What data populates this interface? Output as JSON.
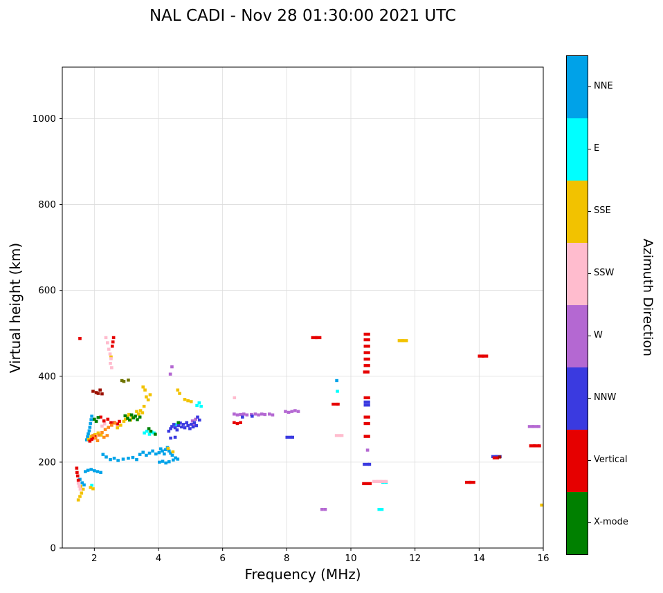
{
  "title": "NAL CADI - Nov 28 01:30:00 2021 UTC",
  "chart_data": {
    "type": "scatter",
    "title": "NAL CADI - Nov 28 01:30:00 2021 UTC",
    "xlabel": "Frequency (MHz)",
    "ylabel": "Virtual height (km)",
    "xlim": [
      1,
      16
    ],
    "ylim": [
      0,
      1120
    ],
    "xticks": [
      2,
      4,
      6,
      8,
      10,
      12,
      14,
      16
    ],
    "yticks": [
      0,
      200,
      400,
      600,
      800,
      1000
    ],
    "grid": true,
    "legend_position": "right-colorbar",
    "colorbar": {
      "label": "Azimuth Direction",
      "categories": [
        "NNE",
        "E",
        "SSE",
        "SSW",
        "W",
        "NNW",
        "Vertical",
        "X-mode"
      ],
      "colors": [
        "#00a2e8",
        "#00ffff",
        "#f2c200",
        "#ffbcce",
        "#b468d2",
        "#3a3ae0",
        "#e60000",
        "#008000"
      ]
    },
    "extra_colors": {
      "Orange": "#ff8c1a",
      "DarkRed": "#9b1000",
      "DarkOlive": "#6f7400"
    },
    "marker": {
      "width_mhz": 0.1,
      "height_km": 7
    },
    "points_format": [
      "freq_mhz",
      "height_km",
      "direction",
      "width_scale_optional"
    ],
    "points": [
      [
        1.55,
        160,
        "NNE"
      ],
      [
        1.62,
        152,
        "NNE"
      ],
      [
        1.68,
        147,
        "NNE"
      ],
      [
        1.72,
        178,
        "NNE"
      ],
      [
        1.8,
        181,
        "NNE"
      ],
      [
        1.9,
        183,
        "NNE"
      ],
      [
        2.0,
        180,
        "NNE"
      ],
      [
        2.1,
        178,
        "NNE"
      ],
      [
        2.2,
        176,
        "NNE"
      ],
      [
        1.76,
        252,
        "NNE"
      ],
      [
        1.79,
        259,
        "NNE"
      ],
      [
        1.81,
        266,
        "NNE"
      ],
      [
        1.84,
        273,
        "NNE"
      ],
      [
        1.86,
        281,
        "NNE"
      ],
      [
        1.88,
        290,
        "NNE"
      ],
      [
        1.9,
        299,
        "NNE"
      ],
      [
        1.92,
        307,
        "NNE"
      ],
      [
        2.27,
        218,
        "NNE"
      ],
      [
        2.37,
        212,
        "NNE"
      ],
      [
        2.5,
        206,
        "NNE"
      ],
      [
        2.62,
        209,
        "NNE"
      ],
      [
        2.74,
        204,
        "NNE"
      ],
      [
        2.9,
        207,
        "NNE"
      ],
      [
        3.06,
        209,
        "NNE"
      ],
      [
        3.2,
        211,
        "NNE"
      ],
      [
        3.32,
        206,
        "NNE"
      ],
      [
        3.42,
        218,
        "NNE"
      ],
      [
        3.52,
        223,
        "NNE"
      ],
      [
        3.62,
        216,
        "NNE"
      ],
      [
        3.72,
        221,
        "NNE"
      ],
      [
        3.82,
        226,
        "NNE"
      ],
      [
        3.92,
        219,
        "NNE"
      ],
      [
        4.02,
        222,
        "NNE"
      ],
      [
        4.07,
        231,
        "NNE"
      ],
      [
        4.12,
        226,
        "NNE"
      ],
      [
        4.18,
        219,
        "NNE"
      ],
      [
        4.22,
        229,
        "NNE"
      ],
      [
        4.28,
        234,
        "NNE"
      ],
      [
        4.33,
        226,
        "NNE"
      ],
      [
        4.38,
        221,
        "NNE"
      ],
      [
        4.43,
        216,
        "NNE"
      ],
      [
        4.03,
        200,
        "NNE"
      ],
      [
        4.13,
        202,
        "NNE"
      ],
      [
        4.23,
        198,
        "NNE"
      ],
      [
        4.33,
        201,
        "NNE"
      ],
      [
        4.46,
        205,
        "NNE"
      ],
      [
        4.53,
        210,
        "NNE"
      ],
      [
        4.6,
        207,
        "NNE"
      ],
      [
        9.56,
        390,
        "NNE"
      ],
      [
        1.92,
        146,
        "E"
      ],
      [
        3.56,
        268,
        "E"
      ],
      [
        3.64,
        272,
        "E"
      ],
      [
        3.72,
        265,
        "E"
      ],
      [
        3.79,
        270,
        "E"
      ],
      [
        3.86,
        268,
        "E"
      ],
      [
        4.52,
        287,
        "E"
      ],
      [
        5.2,
        332,
        "E"
      ],
      [
        5.27,
        338,
        "E"
      ],
      [
        5.33,
        330,
        "E"
      ],
      [
        9.58,
        365,
        "E"
      ],
      [
        10.88,
        90,
        "E"
      ],
      [
        10.97,
        90,
        "E"
      ],
      [
        11.0,
        153,
        "E"
      ],
      [
        11.1,
        153,
        "E"
      ],
      [
        1.5,
        112,
        "SSE"
      ],
      [
        1.55,
        120,
        "SSE"
      ],
      [
        1.6,
        128,
        "SSE"
      ],
      [
        1.65,
        137,
        "SSE"
      ],
      [
        1.57,
        144,
        "SSE"
      ],
      [
        1.88,
        141,
        "SSE"
      ],
      [
        1.96,
        138,
        "SSE"
      ],
      [
        1.82,
        253,
        "SSE"
      ],
      [
        1.9,
        260,
        "SSE"
      ],
      [
        2.02,
        264,
        "SSE"
      ],
      [
        2.12,
        268,
        "SSE"
      ],
      [
        2.21,
        263,
        "SSE"
      ],
      [
        2.52,
        445,
        "SSE"
      ],
      [
        2.72,
        280,
        "SSE"
      ],
      [
        2.82,
        286,
        "SSE"
      ],
      [
        2.92,
        295,
        "SSE"
      ],
      [
        2.97,
        300,
        "SSE"
      ],
      [
        3.03,
        306,
        "SSE"
      ],
      [
        3.08,
        311,
        "SSE"
      ],
      [
        3.13,
        298,
        "SSE"
      ],
      [
        3.18,
        304,
        "SSE"
      ],
      [
        3.32,
        318,
        "SSE"
      ],
      [
        3.38,
        312,
        "SSE"
      ],
      [
        3.44,
        320,
        "SSE"
      ],
      [
        3.5,
        315,
        "SSE"
      ],
      [
        3.55,
        330,
        "SSE"
      ],
      [
        3.52,
        375,
        "SSE"
      ],
      [
        3.58,
        368,
        "SSE"
      ],
      [
        3.62,
        352,
        "SSE"
      ],
      [
        3.68,
        345,
        "SSE"
      ],
      [
        3.74,
        357,
        "SSE"
      ],
      [
        4.3,
        232,
        "SSE"
      ],
      [
        4.45,
        224,
        "SSE"
      ],
      [
        4.6,
        368,
        "SSE"
      ],
      [
        4.66,
        360,
        "SSE"
      ],
      [
        4.82,
        346,
        "SSE"
      ],
      [
        4.92,
        343,
        "SSE"
      ],
      [
        5.02,
        341,
        "SSE"
      ],
      [
        11.56,
        483,
        "SSE",
        2
      ],
      [
        11.68,
        483,
        "SSE",
        2
      ],
      [
        15.95,
        100,
        "SSE"
      ],
      [
        1.5,
        151,
        "SSW"
      ],
      [
        1.53,
        144,
        "SSW"
      ],
      [
        1.56,
        137,
        "SSW"
      ],
      [
        2.24,
        284,
        "SSW"
      ],
      [
        2.32,
        289,
        "SSW"
      ],
      [
        2.36,
        490,
        "SSW"
      ],
      [
        2.41,
        478,
        "SSW"
      ],
      [
        2.45,
        463,
        "SSW"
      ],
      [
        2.49,
        452,
        "SSW"
      ],
      [
        2.52,
        441,
        "SSW"
      ],
      [
        2.5,
        430,
        "SSW"
      ],
      [
        2.54,
        420,
        "SSW"
      ],
      [
        6.37,
        350,
        "SSW"
      ],
      [
        9.6,
        262,
        "SSW",
        2
      ],
      [
        9.72,
        262,
        "SSW"
      ],
      [
        10.77,
        155,
        "SSW",
        2
      ],
      [
        10.88,
        155,
        "SSW",
        2
      ],
      [
        10.99,
        155,
        "SSW",
        2
      ],
      [
        11.1,
        155,
        "SSW"
      ],
      [
        4.37,
        405,
        "W"
      ],
      [
        4.42,
        422,
        "W"
      ],
      [
        6.36,
        312,
        "W"
      ],
      [
        6.46,
        310,
        "W"
      ],
      [
        6.56,
        311,
        "W"
      ],
      [
        6.66,
        312,
        "W"
      ],
      [
        6.76,
        310,
        "W"
      ],
      [
        6.9,
        311,
        "W"
      ],
      [
        7.02,
        312,
        "W"
      ],
      [
        7.12,
        310,
        "W"
      ],
      [
        7.22,
        312,
        "W"
      ],
      [
        7.32,
        311,
        "W"
      ],
      [
        7.46,
        312,
        "W"
      ],
      [
        7.56,
        310,
        "W"
      ],
      [
        7.96,
        318,
        "W"
      ],
      [
        8.06,
        316,
        "W"
      ],
      [
        8.16,
        318,
        "W"
      ],
      [
        8.26,
        320,
        "W"
      ],
      [
        8.36,
        318,
        "W"
      ],
      [
        9.1,
        90,
        "W"
      ],
      [
        9.2,
        90,
        "W"
      ],
      [
        10.52,
        228,
        "W"
      ],
      [
        5.06,
        296,
        "W"
      ],
      [
        5.16,
        300,
        "W"
      ],
      [
        5.1,
        288,
        "W"
      ],
      [
        15.62,
        283,
        "W",
        2
      ],
      [
        15.74,
        283,
        "W",
        2
      ],
      [
        15.86,
        283,
        "W"
      ],
      [
        4.32,
        272,
        "NNW"
      ],
      [
        4.38,
        278,
        "NNW"
      ],
      [
        4.42,
        283,
        "NNW"
      ],
      [
        4.48,
        288,
        "NNW"
      ],
      [
        4.52,
        280,
        "NNW"
      ],
      [
        4.58,
        275,
        "NNW"
      ],
      [
        4.62,
        285,
        "NNW"
      ],
      [
        4.68,
        291,
        "NNW"
      ],
      [
        4.72,
        282,
        "NNW"
      ],
      [
        4.78,
        288,
        "NNW"
      ],
      [
        4.82,
        280,
        "NNW"
      ],
      [
        4.88,
        292,
        "NNW"
      ],
      [
        4.92,
        285,
        "NNW"
      ],
      [
        4.98,
        278,
        "NNW"
      ],
      [
        5.02,
        288,
        "NNW"
      ],
      [
        5.08,
        282,
        "NNW"
      ],
      [
        5.12,
        292,
        "NNW"
      ],
      [
        5.18,
        285,
        "NNW"
      ],
      [
        5.22,
        305,
        "NNW"
      ],
      [
        5.28,
        298,
        "NNW"
      ],
      [
        4.38,
        256,
        "NNW"
      ],
      [
        4.52,
        258,
        "NNW"
      ],
      [
        6.62,
        305,
        "NNW"
      ],
      [
        6.92,
        307,
        "NNW"
      ],
      [
        8.06,
        258,
        "NNW",
        2
      ],
      [
        8.18,
        258,
        "NNW"
      ],
      [
        10.47,
        195,
        "NNW",
        2
      ],
      [
        10.58,
        195,
        "NNW"
      ],
      [
        10.5,
        340,
        "NNW",
        2
      ],
      [
        10.5,
        333,
        "NNW",
        2
      ],
      [
        14.48,
        213,
        "NNW",
        2
      ],
      [
        14.6,
        213,
        "NNW",
        2
      ],
      [
        1.45,
        186,
        "Vertical"
      ],
      [
        1.46,
        176,
        "Vertical"
      ],
      [
        1.48,
        168,
        "Vertical"
      ],
      [
        1.5,
        158,
        "Vertical"
      ],
      [
        1.55,
        488,
        "Vertical"
      ],
      [
        1.86,
        249,
        "Vertical"
      ],
      [
        1.92,
        253,
        "Vertical"
      ],
      [
        1.97,
        256,
        "Vertical"
      ],
      [
        2.02,
        259,
        "Vertical"
      ],
      [
        2.2,
        305,
        "Vertical"
      ],
      [
        2.3,
        296,
        "Vertical"
      ],
      [
        2.42,
        300,
        "Vertical"
      ],
      [
        2.52,
        292,
        "Vertical"
      ],
      [
        2.62,
        292,
        "Vertical"
      ],
      [
        2.72,
        289,
        "Vertical"
      ],
      [
        2.78,
        295,
        "Vertical"
      ],
      [
        2.56,
        470,
        "Vertical"
      ],
      [
        2.58,
        480,
        "Vertical"
      ],
      [
        2.6,
        490,
        "Vertical"
      ],
      [
        6.36,
        292,
        "Vertical"
      ],
      [
        6.46,
        290,
        "Vertical"
      ],
      [
        6.56,
        292,
        "Vertical"
      ],
      [
        8.86,
        490,
        "Vertical",
        2
      ],
      [
        8.98,
        490,
        "Vertical",
        2
      ],
      [
        9.5,
        335,
        "Vertical",
        2
      ],
      [
        9.6,
        335,
        "Vertical"
      ],
      [
        10.5,
        150,
        "Vertical",
        3
      ],
      [
        10.5,
        260,
        "Vertical",
        2
      ],
      [
        10.5,
        290,
        "Vertical",
        2
      ],
      [
        10.5,
        305,
        "Vertical",
        2
      ],
      [
        10.5,
        350,
        "Vertical",
        2
      ],
      [
        10.48,
        410,
        "Vertical",
        2
      ],
      [
        10.5,
        425,
        "Vertical",
        2
      ],
      [
        10.5,
        440,
        "Vertical",
        2
      ],
      [
        10.5,
        455,
        "Vertical",
        2
      ],
      [
        10.5,
        470,
        "Vertical",
        2
      ],
      [
        10.5,
        485,
        "Vertical",
        2
      ],
      [
        10.5,
        498,
        "Vertical",
        2
      ],
      [
        13.66,
        153,
        "Vertical",
        2
      ],
      [
        13.78,
        153,
        "Vertical",
        2
      ],
      [
        14.06,
        447,
        "Vertical",
        2
      ],
      [
        14.18,
        447,
        "Vertical",
        2
      ],
      [
        14.52,
        210,
        "Vertical",
        2
      ],
      [
        15.66,
        238,
        "Vertical",
        2
      ],
      [
        15.78,
        238,
        "Vertical",
        2
      ],
      [
        15.88,
        238,
        "Vertical"
      ],
      [
        1.96,
        262,
        "Orange"
      ],
      [
        2.04,
        256,
        "Orange"
      ],
      [
        2.14,
        263,
        "Orange"
      ],
      [
        2.24,
        269,
        "Orange"
      ],
      [
        2.34,
        276,
        "Orange"
      ],
      [
        2.44,
        281,
        "Orange"
      ],
      [
        2.54,
        286,
        "Orange"
      ],
      [
        2.64,
        291,
        "Orange"
      ],
      [
        2.3,
        258,
        "Orange"
      ],
      [
        2.4,
        262,
        "Orange"
      ],
      [
        2.1,
        250,
        "Orange"
      ],
      [
        1.96,
        365,
        "DarkRed"
      ],
      [
        2.06,
        362,
        "DarkRed"
      ],
      [
        2.12,
        360,
        "DarkRed"
      ],
      [
        2.18,
        368,
        "DarkRed"
      ],
      [
        2.24,
        359,
        "DarkRed"
      ],
      [
        14.64,
        212,
        "DarkRed"
      ],
      [
        2.86,
        390,
        "DarkOlive"
      ],
      [
        2.92,
        388,
        "DarkOlive"
      ],
      [
        3.06,
        391,
        "DarkOlive"
      ],
      [
        2.0,
        300,
        "X-mode"
      ],
      [
        2.06,
        295,
        "X-mode"
      ],
      [
        2.12,
        304,
        "X-mode"
      ],
      [
        2.96,
        308,
        "X-mode"
      ],
      [
        3.04,
        302,
        "X-mode"
      ],
      [
        3.1,
        298,
        "X-mode"
      ],
      [
        3.16,
        310,
        "X-mode"
      ],
      [
        3.22,
        303,
        "X-mode"
      ],
      [
        3.28,
        307,
        "X-mode"
      ],
      [
        3.34,
        299,
        "X-mode"
      ],
      [
        3.42,
        305,
        "X-mode"
      ],
      [
        3.7,
        278,
        "X-mode"
      ],
      [
        3.76,
        272,
        "X-mode"
      ],
      [
        3.9,
        265,
        "X-mode"
      ],
      [
        4.62,
        292,
        "X-mode"
      ]
    ]
  }
}
